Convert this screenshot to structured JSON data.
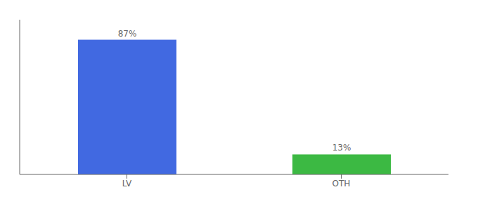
{
  "chart_data": {
    "type": "bar",
    "categories": [
      "LV",
      "OTH"
    ],
    "values": [
      87,
      13
    ],
    "value_labels": [
      "87%",
      "13%"
    ],
    "colors": [
      "#4169e1",
      "#3cb943"
    ],
    "ylim": [
      0,
      100
    ],
    "data_labels": true,
    "tick_labels": "x"
  }
}
